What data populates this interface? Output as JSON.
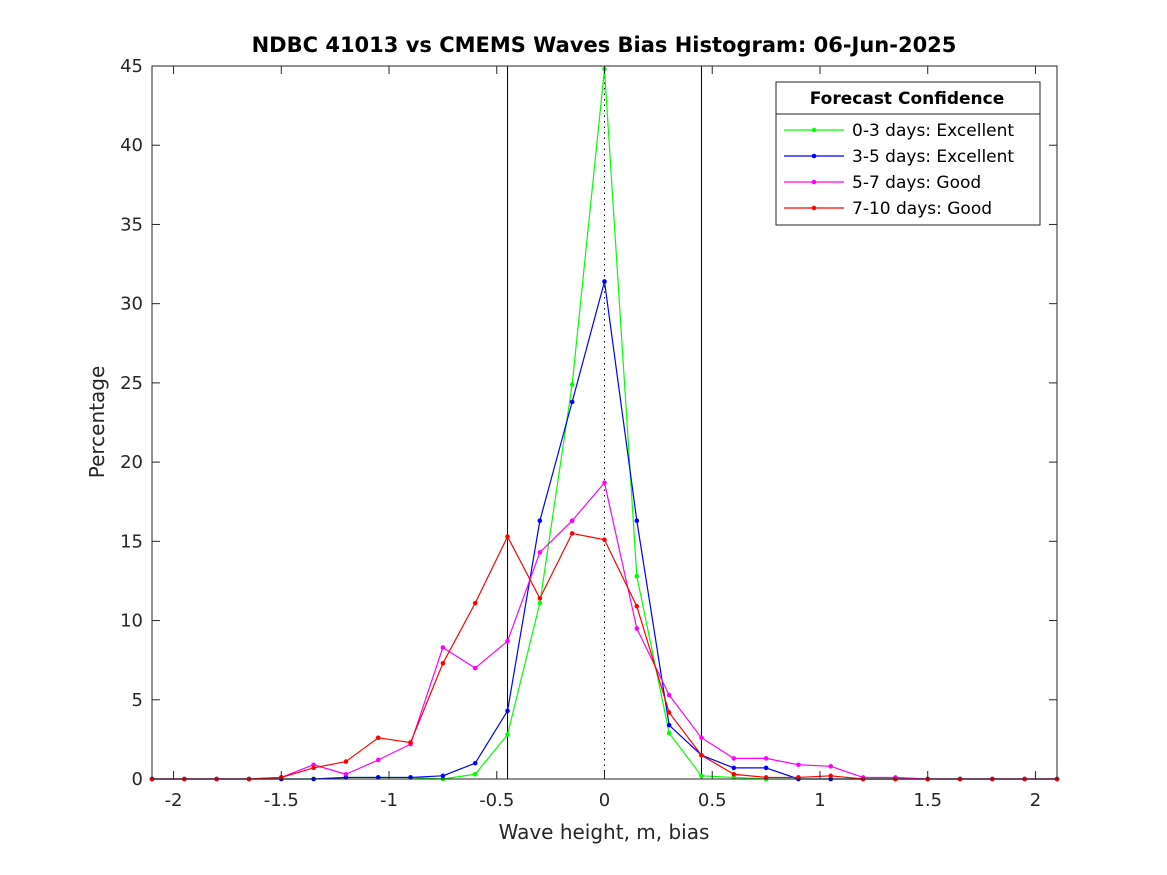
{
  "chart_data": {
    "type": "line",
    "title": "NDBC 41013 vs CMEMS Waves Bias Histogram: 06-Jun-2025",
    "xlabel": "Wave height, m, bias",
    "ylabel": "Percentage",
    "xlim": [
      -2.1,
      2.1
    ],
    "ylim": [
      0,
      45
    ],
    "xticks": [
      -2,
      -1.5,
      -1,
      -0.5,
      0,
      0.5,
      1,
      1.5,
      2
    ],
    "xtick_labels": [
      "-2",
      "-1.5",
      "-1",
      "-0.5",
      "0",
      "0.5",
      "1",
      "1.5",
      "2"
    ],
    "yticks": [
      0,
      5,
      10,
      15,
      20,
      25,
      30,
      35,
      40,
      45
    ],
    "ytick_labels": [
      "0",
      "5",
      "10",
      "15",
      "20",
      "25",
      "30",
      "35",
      "40",
      "45"
    ],
    "vertical_lines": [
      {
        "x": -0.45,
        "style": "solid"
      },
      {
        "x": 0,
        "style": "dotted"
      },
      {
        "x": 0.45,
        "style": "solid"
      }
    ],
    "legend": {
      "title": "Forecast Confidence",
      "location": "top-right"
    },
    "grid": false,
    "x": [
      -2.1,
      -1.95,
      -1.8,
      -1.65,
      -1.5,
      -1.35,
      -1.2,
      -1.05,
      -0.9,
      -0.75,
      -0.6,
      -0.45,
      -0.3,
      -0.15,
      0,
      0.15,
      0.3,
      0.45,
      0.6,
      0.75,
      0.9,
      1.05,
      1.2,
      1.35,
      1.5,
      1.65,
      1.8,
      1.95,
      2.1
    ],
    "series": [
      {
        "name": "0-3 days: Excellent",
        "color": "#00ff00",
        "values": [
          0,
          0,
          0,
          0,
          0,
          0,
          0.1,
          0.1,
          0.1,
          0,
          0.3,
          2.8,
          11.1,
          24.9,
          44.8,
          12.8,
          2.9,
          0.2,
          0.1,
          0,
          0,
          0,
          0,
          0,
          0,
          0,
          0,
          0,
          0
        ]
      },
      {
        "name": "3-5 days: Excellent",
        "color": "#0000ff",
        "values": [
          0,
          0,
          0,
          0,
          0,
          0,
          0.1,
          0.1,
          0.1,
          0.2,
          1.0,
          4.3,
          16.3,
          23.8,
          31.4,
          16.3,
          3.4,
          1.5,
          0.7,
          0.7,
          0,
          0,
          0,
          0,
          0,
          0,
          0,
          0,
          0
        ]
      },
      {
        "name": "5-7 days: Good",
        "color": "#ff00ff",
        "values": [
          0,
          0,
          0,
          0,
          0.1,
          0.9,
          0.3,
          1.2,
          2.2,
          8.3,
          7.0,
          8.7,
          14.3,
          16.3,
          18.7,
          9.5,
          5.3,
          2.6,
          1.3,
          1.3,
          0.9,
          0.8,
          0.1,
          0.1,
          0,
          0,
          0,
          0,
          0
        ]
      },
      {
        "name": "7-10 days: Good",
        "color": "#ff0000",
        "values": [
          0,
          0,
          0,
          0,
          0.1,
          0.7,
          1.1,
          2.6,
          2.3,
          7.3,
          11.1,
          15.3,
          11.4,
          15.5,
          15.1,
          10.9,
          4.2,
          1.5,
          0.3,
          0.1,
          0.1,
          0.2,
          0,
          0,
          0,
          0,
          0,
          0,
          0
        ]
      }
    ]
  }
}
